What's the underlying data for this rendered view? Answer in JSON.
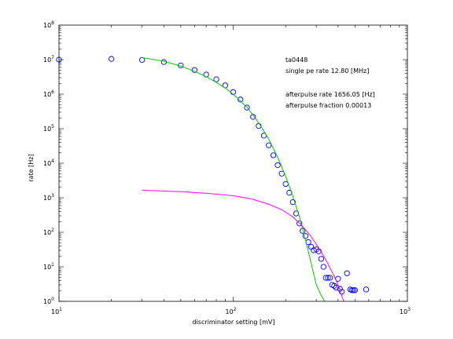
{
  "chart_data": {
    "type": "scatter",
    "xscale": "log",
    "yscale": "log",
    "xlim": [
      10,
      1000
    ],
    "ylim": [
      1,
      100000000
    ],
    "xlabel": "discriminator setting [mV]",
    "ylabel": "rate [Hz]",
    "x_ticks": [
      {
        "value": 10,
        "base": "10",
        "exp": "1"
      },
      {
        "value": 100,
        "base": "10",
        "exp": "2"
      },
      {
        "value": 1000,
        "base": "10",
        "exp": "3"
      }
    ],
    "y_ticks": [
      {
        "value": 1,
        "base": "10",
        "exp": "0"
      },
      {
        "value": 10,
        "base": "10",
        "exp": "1"
      },
      {
        "value": 100,
        "base": "10",
        "exp": "2"
      },
      {
        "value": 1000,
        "base": "10",
        "exp": "3"
      },
      {
        "value": 10000,
        "base": "10",
        "exp": "4"
      },
      {
        "value": 100000,
        "base": "10",
        "exp": "5"
      },
      {
        "value": 1000000,
        "base": "10",
        "exp": "6"
      },
      {
        "value": 10000000,
        "base": "10",
        "exp": "7"
      },
      {
        "value": 100000000,
        "base": "10",
        "exp": "8"
      }
    ],
    "annotations": [
      "ta0448",
      "single pe rate 12.80 [MHz]",
      "afterpulse rate 1656.05 [Hz]",
      "afterpulse fraction 0.00013"
    ],
    "grid": false,
    "colors": {
      "points": "#0000ff",
      "fit": "#00cc00",
      "afterpulse": "#ff00ff"
    },
    "series": [
      {
        "style": "markers",
        "x": [
          10,
          20,
          30,
          40,
          50,
          60,
          70,
          80,
          90,
          100,
          110,
          120,
          130,
          140,
          150,
          160,
          170,
          180,
          190,
          200,
          210,
          220,
          230,
          240,
          250,
          260,
          270,
          280,
          290,
          300,
          310,
          320,
          330,
          340,
          350,
          360,
          370,
          380,
          390,
          400,
          410,
          420,
          450,
          470,
          480,
          490,
          500,
          580
        ],
        "y": [
          10000000,
          10500000,
          9800000,
          8500000,
          6800000,
          5000000,
          3700000,
          2700000,
          1800000,
          1150000,
          700000,
          410000,
          220000,
          120000,
          63000,
          33000,
          17000,
          8800,
          5000,
          2500,
          1400,
          750,
          350,
          180,
          110,
          78,
          52,
          38,
          30,
          32,
          28,
          17,
          10,
          4.8,
          4.8,
          4.8,
          3,
          2.8,
          2.5,
          4.5,
          2.3,
          1.9,
          6.5,
          2.2,
          2.1,
          2.1,
          2.1,
          2.2
        ]
      },
      {
        "style": "line",
        "x": [
          30,
          40,
          50,
          60,
          70,
          80,
          90,
          100,
          120,
          140,
          160,
          180,
          200,
          220,
          240,
          260,
          280,
          300,
          320,
          335
        ],
        "y": [
          11500000,
          9000000,
          6500000,
          4600000,
          3200000,
          2200000,
          1500000,
          1000000,
          420000,
          150000,
          50000,
          15000,
          4200,
          1100,
          280,
          60,
          13,
          3,
          1.5,
          1
        ]
      },
      {
        "style": "line",
        "x": [
          30,
          50,
          70,
          100,
          130,
          160,
          190,
          220,
          250,
          280,
          310,
          340,
          370,
          390,
          410,
          425,
          432
        ],
        "y": [
          1650,
          1500,
          1350,
          1150,
          900,
          650,
          450,
          280,
          150,
          75,
          35,
          16,
          7,
          4,
          2.2,
          1.2,
          1
        ]
      }
    ]
  }
}
